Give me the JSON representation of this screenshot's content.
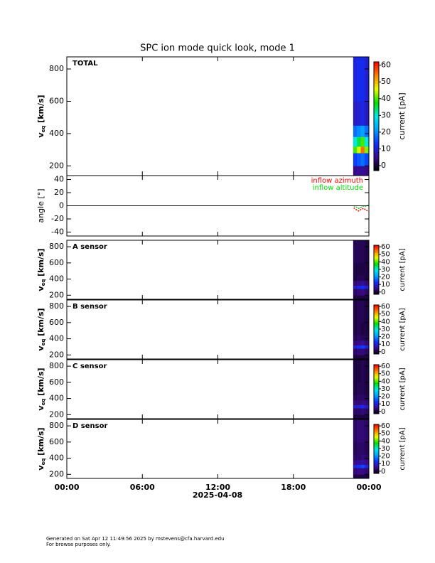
{
  "title": "SPC ion mode quick look, mode 1",
  "x_axis": {
    "xlim": [
      0,
      24
    ],
    "xticks": [
      {
        "value": 0,
        "label": "00:00"
      },
      {
        "value": 6,
        "label": "06:00"
      },
      {
        "value": 12,
        "label": "12:00"
      },
      {
        "value": 18,
        "label": "18:00"
      },
      {
        "value": 24,
        "label": "00:00"
      }
    ],
    "label": "2025-04-08"
  },
  "colorbar": {
    "label": "current [pA]",
    "clim": [
      -3,
      62
    ],
    "ticks": [
      0,
      10,
      20,
      30,
      40,
      50,
      60
    ],
    "colormap": [
      "#000000",
      "#3a0a8a",
      "#1030ff",
      "#00a0ff",
      "#00e8e8",
      "#00e000",
      "#e8ff00",
      "#ff8000",
      "#ff0000"
    ]
  },
  "chart_data": [
    {
      "type": "heatmap",
      "label": "TOTAL",
      "ylabel": {
        "main": "v",
        "sub": "eq",
        "unit": "[km/s]"
      },
      "ylim": [
        140,
        875
      ],
      "yticks": [
        200,
        400,
        600,
        800
      ],
      "x_edges": [
        22.75,
        23.05,
        23.35,
        23.65,
        24
      ],
      "y_edges": [
        140,
        200,
        280,
        320,
        380,
        450,
        600,
        880
      ],
      "values": [
        [
          5,
          6,
          6,
          5
        ],
        [
          14,
          16,
          18,
          15
        ],
        [
          40,
          45,
          55,
          42
        ],
        [
          30,
          35,
          40,
          30
        ],
        [
          18,
          20,
          22,
          18
        ],
        [
          9,
          10,
          11,
          9
        ],
        [
          11,
          12,
          12,
          10
        ]
      ]
    },
    {
      "type": "line",
      "ylabel": "angle [°]",
      "ylim": [
        -46,
        46
      ],
      "yticks": [
        -40,
        -20,
        0,
        20,
        40
      ],
      "reference_line": 0,
      "x": [
        22.8,
        23.0,
        23.2,
        23.4,
        23.6,
        23.8,
        24.0
      ],
      "series": [
        {
          "name": "inflow azimuth",
          "color": "#ff0000",
          "values": [
            -3,
            -6,
            -8,
            -5,
            -4,
            -7,
            -8
          ]
        },
        {
          "name": "inflow altitude",
          "color": "#00dd00",
          "values": [
            0,
            -2,
            -4,
            -2,
            0,
            -1,
            2
          ]
        }
      ]
    },
    {
      "type": "heatmap",
      "label": "A sensor",
      "ylabel": {
        "main": "v",
        "sub": "eq",
        "unit": "[km/s]"
      },
      "ylim": [
        150,
        880
      ],
      "yticks": [
        200,
        400,
        600,
        800
      ],
      "x_edges": [
        22.75,
        23.05,
        23.35,
        23.65,
        24
      ],
      "y_edges": [
        150,
        200,
        280,
        320,
        380,
        450,
        600,
        880
      ],
      "values": [
        [
          1,
          1,
          1,
          1
        ],
        [
          3,
          4,
          5,
          3
        ],
        [
          9,
          11,
          13,
          10
        ],
        [
          4,
          5,
          6,
          4
        ],
        [
          1,
          2,
          2,
          1
        ],
        [
          1,
          1,
          1,
          1
        ],
        [
          2,
          2,
          2,
          1
        ]
      ]
    },
    {
      "type": "heatmap",
      "label": "B sensor",
      "ylabel": {
        "main": "v",
        "sub": "eq",
        "unit": "[km/s]"
      },
      "ylim": [
        150,
        880
      ],
      "yticks": [
        200,
        400,
        600,
        800
      ],
      "x_edges": [
        22.75,
        23.05,
        23.35,
        23.65,
        24
      ],
      "y_edges": [
        150,
        200,
        280,
        320,
        380,
        450,
        600,
        880
      ],
      "values": [
        [
          1,
          1,
          1,
          1
        ],
        [
          3,
          4,
          4,
          3
        ],
        [
          10,
          12,
          14,
          10
        ],
        [
          4,
          5,
          6,
          4
        ],
        [
          2,
          3,
          2,
          2
        ],
        [
          1,
          2,
          1,
          1
        ],
        [
          1,
          2,
          2,
          1
        ]
      ]
    },
    {
      "type": "heatmap",
      "label": "C sensor",
      "ylabel": {
        "main": "v",
        "sub": "eq",
        "unit": "[km/s]"
      },
      "ylim": [
        150,
        880
      ],
      "yticks": [
        200,
        400,
        600,
        800
      ],
      "x_edges": [
        22.75,
        23.05,
        23.35,
        23.65,
        24
      ],
      "y_edges": [
        150,
        200,
        280,
        320,
        380,
        450,
        600,
        880
      ],
      "values": [
        [
          1,
          1,
          1,
          1
        ],
        [
          3,
          3,
          4,
          3
        ],
        [
          9,
          10,
          12,
          9
        ],
        [
          4,
          4,
          5,
          4
        ],
        [
          2,
          3,
          3,
          2
        ],
        [
          1,
          2,
          2,
          1
        ],
        [
          1,
          1,
          2,
          1
        ]
      ]
    },
    {
      "type": "heatmap",
      "label": "D sensor",
      "ylabel": {
        "main": "v",
        "sub": "eq",
        "unit": "[km/s]"
      },
      "ylim": [
        150,
        880
      ],
      "yticks": [
        200,
        400,
        600,
        800
      ],
      "x_edges": [
        22.75,
        23.05,
        23.35,
        23.65,
        24
      ],
      "y_edges": [
        150,
        200,
        280,
        320,
        380,
        450,
        600,
        880
      ],
      "values": [
        [
          1,
          1,
          1,
          1
        ],
        [
          4,
          5,
          5,
          4
        ],
        [
          11,
          13,
          15,
          11
        ],
        [
          5,
          6,
          7,
          5
        ],
        [
          3,
          3,
          4,
          3
        ],
        [
          2,
          3,
          3,
          2
        ],
        [
          3,
          4,
          4,
          3
        ]
      ]
    }
  ],
  "footer": [
    "Generated on Sat Apr 12 11:49:56 2025 by mstevens@cfa.harvard.edu",
    "For browse purposes only."
  ]
}
